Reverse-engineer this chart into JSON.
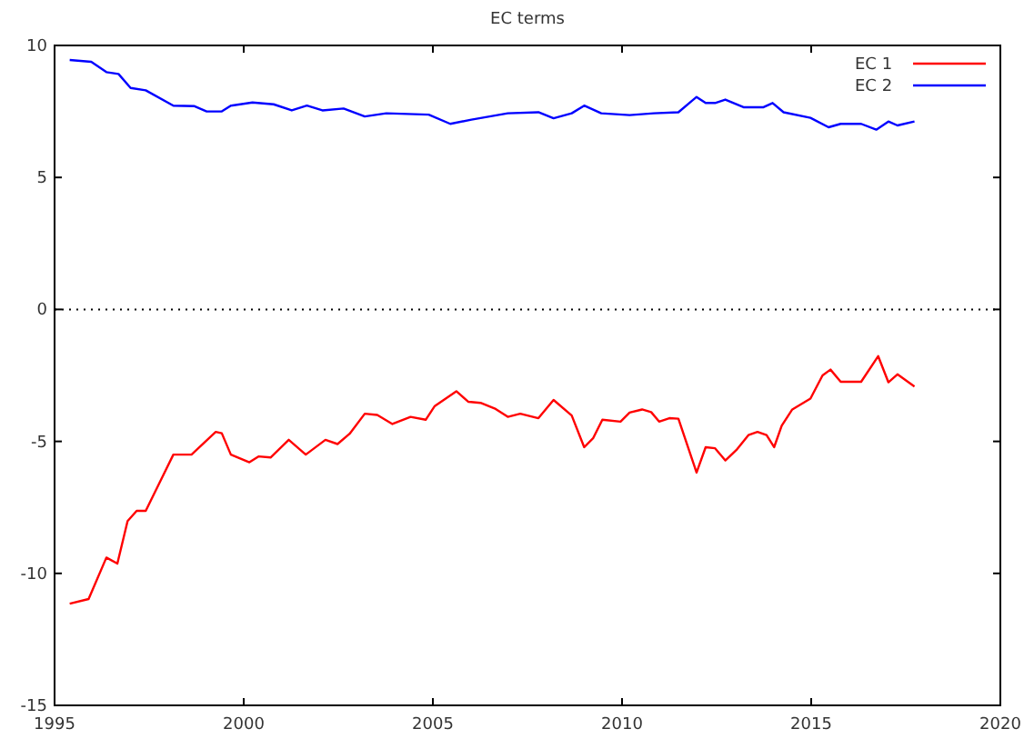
{
  "chart_data": {
    "type": "line",
    "title": "EC terms",
    "xlim": [
      1995,
      2020
    ],
    "xticks": [
      1995,
      2000,
      2005,
      2010,
      2015,
      2020
    ],
    "ylim": [
      -15,
      10
    ],
    "yticks": [
      -15,
      -10,
      -5,
      0,
      5,
      10
    ],
    "grid": false,
    "legend": "top right",
    "marker": "none",
    "line_style": "solid",
    "ref_lines": [
      {
        "axis": "y",
        "value": 0,
        "label": null,
        "color": "#000000",
        "line_style": "dotted"
      }
    ],
    "series": [
      {
        "name": "EC 1",
        "color": "#ff0000",
        "x": [
          1995.4,
          1995.9,
          1996.37,
          1996.66,
          1996.93,
          1997.17,
          1997.41,
          1998.14,
          1998.62,
          1999.26,
          1999.42,
          1999.66,
          2000.15,
          2000.39,
          2000.71,
          2001.19,
          2001.64,
          2002.16,
          2002.48,
          2002.8,
          2003.2,
          2003.53,
          2003.93,
          2004.41,
          2004.81,
          2005.05,
          2005.62,
          2005.94,
          2006.26,
          2006.66,
          2006.98,
          2007.31,
          2007.79,
          2008.19,
          2008.67,
          2009.0,
          2009.24,
          2009.48,
          2009.96,
          2010.2,
          2010.53,
          2010.77,
          2010.98,
          2011.25,
          2011.49,
          2011.97,
          2012.21,
          2012.46,
          2012.73,
          2013.02,
          2013.34,
          2013.58,
          2013.82,
          2014.02,
          2014.22,
          2014.5,
          2014.98,
          2015.3,
          2015.51,
          2015.78,
          2016.32,
          2016.77,
          2017.04,
          2017.28,
          2017.73
        ],
        "values": [
          -11.15,
          -10.97,
          -9.4,
          -9.63,
          -8.02,
          -7.63,
          -7.63,
          -5.5,
          -5.5,
          -4.64,
          -4.69,
          -5.5,
          -5.79,
          -5.57,
          -5.61,
          -4.94,
          -5.5,
          -4.94,
          -5.1,
          -4.71,
          -3.95,
          -4.0,
          -4.34,
          -4.07,
          -4.18,
          -3.66,
          -3.1,
          -3.5,
          -3.54,
          -3.77,
          -4.07,
          -3.95,
          -4.12,
          -3.43,
          -4.02,
          -5.22,
          -4.87,
          -4.18,
          -4.25,
          -3.91,
          -3.79,
          -3.89,
          -4.25,
          -4.12,
          -4.14,
          -6.18,
          -5.22,
          -5.26,
          -5.72,
          -5.33,
          -4.76,
          -4.64,
          -4.76,
          -5.22,
          -4.41,
          -3.79,
          -3.38,
          -2.5,
          -2.28,
          -2.74,
          -2.74,
          -1.77,
          -2.76,
          -2.46,
          -2.92
        ]
      },
      {
        "name": "EC 2",
        "color": "#0000ff",
        "x": [
          1995.4,
          1995.97,
          1996.37,
          1996.69,
          1997.01,
          1997.41,
          1998.14,
          1998.7,
          1999.02,
          1999.42,
          1999.66,
          2000.23,
          2000.79,
          2001.27,
          2001.67,
          2002.08,
          2002.64,
          2003.2,
          2003.77,
          2004.89,
          2005.46,
          2006.02,
          2006.98,
          2007.79,
          2008.19,
          2008.67,
          2009.0,
          2009.45,
          2010.2,
          2010.84,
          2011.49,
          2011.97,
          2012.21,
          2012.46,
          2012.73,
          2013.21,
          2013.74,
          2013.98,
          2014.27,
          2014.98,
          2015.46,
          2015.78,
          2016.32,
          2016.72,
          2017.04,
          2017.28,
          2017.73
        ],
        "values": [
          9.45,
          9.38,
          8.99,
          8.92,
          8.39,
          8.3,
          7.72,
          7.7,
          7.5,
          7.5,
          7.72,
          7.84,
          7.77,
          7.54,
          7.72,
          7.54,
          7.61,
          7.31,
          7.43,
          7.38,
          7.03,
          7.19,
          7.43,
          7.47,
          7.24,
          7.43,
          7.72,
          7.43,
          7.36,
          7.43,
          7.47,
          8.05,
          7.82,
          7.82,
          7.95,
          7.66,
          7.66,
          7.82,
          7.47,
          7.26,
          6.9,
          7.03,
          7.03,
          6.81,
          7.12,
          6.97,
          7.12
        ]
      }
    ]
  }
}
